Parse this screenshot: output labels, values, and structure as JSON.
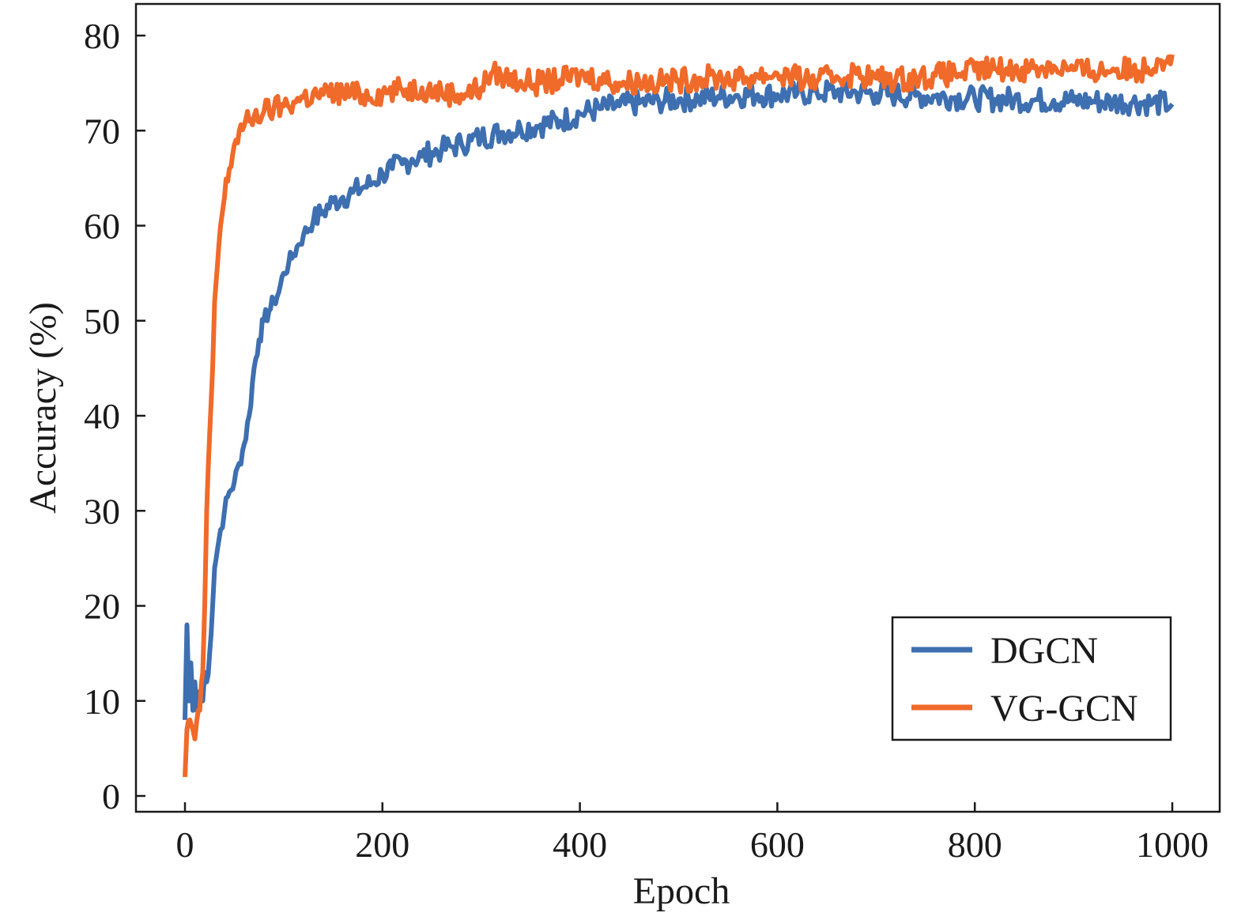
{
  "chart_data": {
    "type": "line",
    "title": "",
    "xlabel": "Epoch",
    "ylabel": "Accuracy (%)",
    "xlim": [
      -50,
      1050
    ],
    "ylim": [
      -1.5,
      83
    ],
    "xticks": [
      0,
      200,
      400,
      600,
      800,
      1000
    ],
    "yticks": [
      0,
      10,
      20,
      30,
      40,
      50,
      60,
      70,
      80
    ],
    "grid": false,
    "legend_position": "bottom-right",
    "series": [
      {
        "name": "DGCN",
        "color": "#3E6FB0",
        "x": [
          0,
          2,
          4,
          6,
          8,
          10,
          12,
          15,
          18,
          20,
          22,
          25,
          28,
          30,
          33,
          36,
          40,
          45,
          50,
          55,
          60,
          65,
          70,
          75,
          80,
          85,
          90,
          95,
          100,
          105,
          110,
          115,
          120,
          130,
          140,
          150,
          160,
          170,
          180,
          190,
          200,
          210,
          220,
          230,
          240,
          250,
          260,
          270,
          280,
          290,
          300,
          320,
          340,
          360,
          380,
          400,
          420,
          440,
          460,
          480,
          500,
          520,
          540,
          560,
          580,
          600,
          620,
          640,
          660,
          680,
          700,
          720,
          740,
          760,
          780,
          800,
          820,
          840,
          860,
          880,
          900,
          920,
          940,
          960,
          980,
          1000
        ],
        "y": [
          8,
          18,
          10,
          14,
          9,
          12,
          9,
          11,
          10,
          13,
          12,
          15,
          20,
          24,
          26,
          28,
          30,
          32,
          33,
          35,
          37,
          40,
          45,
          48,
          50,
          51,
          52,
          53,
          55,
          56,
          57,
          58,
          59,
          60.5,
          61.5,
          62.5,
          63,
          63.5,
          64,
          64.5,
          65.5,
          66,
          66.5,
          67,
          67.3,
          67.7,
          68,
          68.3,
          68.6,
          69,
          69.3,
          69.8,
          70.2,
          70.6,
          71,
          71.8,
          72.3,
          72.6,
          72.9,
          73.1,
          73.3,
          73.4,
          73.6,
          73.7,
          73.8,
          73.8,
          73.9,
          74,
          74.1,
          74,
          73.9,
          73.8,
          73.7,
          73.6,
          73.5,
          73.4,
          73.3,
          73.3,
          73.2,
          73.2,
          73.1,
          73.1,
          73,
          73,
          72.9,
          72.8
        ]
      },
      {
        "name": "VG-GCN",
        "color": "#F06A2A",
        "x": [
          0,
          2,
          5,
          8,
          10,
          12,
          15,
          18,
          20,
          22,
          25,
          28,
          30,
          33,
          36,
          40,
          45,
          50,
          55,
          60,
          65,
          70,
          80,
          90,
          100,
          110,
          120,
          140,
          160,
          180,
          200,
          220,
          240,
          260,
          280,
          300,
          310,
          320,
          340,
          360,
          380,
          400,
          420,
          440,
          460,
          480,
          500,
          520,
          540,
          560,
          580,
          600,
          620,
          640,
          660,
          680,
          700,
          720,
          740,
          760,
          780,
          800,
          820,
          840,
          860,
          880,
          900,
          920,
          940,
          960,
          975,
          985,
          1000
        ],
        "y": [
          2,
          7,
          8,
          7,
          6,
          8,
          9,
          13,
          20,
          30,
          38,
          45,
          52,
          56,
          60,
          63,
          66,
          68.5,
          70,
          70.5,
          71,
          71.5,
          72,
          72.3,
          72.6,
          73,
          73.5,
          73.8,
          74,
          73.7,
          74,
          74.3,
          74.5,
          74,
          73.8,
          74.5,
          76,
          75.8,
          75.2,
          75,
          75.3,
          75.8,
          75.5,
          75,
          75.2,
          75.1,
          75.3,
          75.5,
          75.6,
          75.4,
          75.8,
          76,
          75.5,
          75.2,
          75.7,
          76,
          75.5,
          75.4,
          75.6,
          75.8,
          76,
          76.3,
          76.5,
          76.4,
          76.6,
          76.8,
          76.4,
          76.2,
          76.5,
          76.3,
          76.6,
          77.5,
          78
        ]
      }
    ]
  }
}
